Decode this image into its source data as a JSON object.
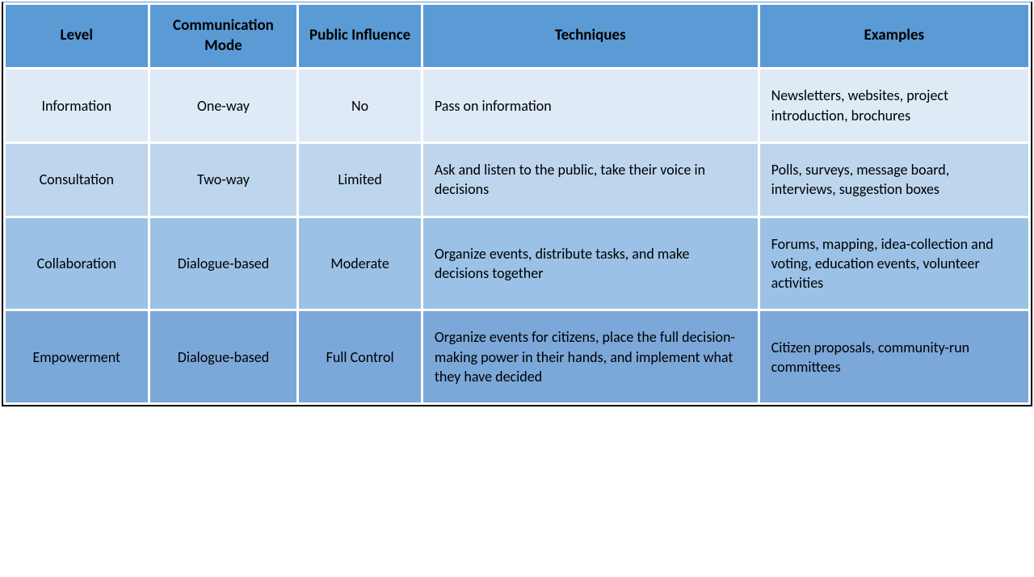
{
  "table": {
    "columns": [
      {
        "label": "Level",
        "class": "col-level"
      },
      {
        "label": "Communication Mode",
        "class": "col-mode"
      },
      {
        "label": "Public Influence",
        "class": "col-influence"
      },
      {
        "label": "Techniques",
        "class": "col-tech"
      },
      {
        "label": "Examples",
        "class": "col-examples"
      }
    ],
    "rows": [
      {
        "row_class": "row-1",
        "cells": [
          {
            "text": "Information",
            "align": "center"
          },
          {
            "text": "One-way",
            "align": "center"
          },
          {
            "text": "No",
            "align": "center"
          },
          {
            "text": "Pass on information",
            "align": "left"
          },
          {
            "text": "Newsletters, websites, project introduction, brochures",
            "align": "left"
          }
        ]
      },
      {
        "row_class": "row-2",
        "cells": [
          {
            "text": "Consultation",
            "align": "center"
          },
          {
            "text": "Two-way",
            "align": "center"
          },
          {
            "text": "Limited",
            "align": "center"
          },
          {
            "text": "Ask and listen to the public, take their voice in decisions",
            "align": "left"
          },
          {
            "text": "Polls, surveys, message board, interviews, suggestion boxes",
            "align": "left"
          }
        ]
      },
      {
        "row_class": "row-3",
        "cells": [
          {
            "text": "Collaboration",
            "align": "center"
          },
          {
            "text": "Dialogue-based",
            "align": "center"
          },
          {
            "text": "Moderate",
            "align": "center"
          },
          {
            "text": "Organize events, distribute tasks, and make decisions together",
            "align": "left"
          },
          {
            "text": "Forums, mapping, idea-collection and voting, education events, volunteer activities",
            "align": "left"
          }
        ]
      },
      {
        "row_class": "row-4",
        "cells": [
          {
            "text": "Empowerment",
            "align": "center"
          },
          {
            "text": "Dialogue-based",
            "align": "center"
          },
          {
            "text": "Full Control",
            "align": "center"
          },
          {
            "text": "Organize events for citizens, place the full decision-making power in their hands, and implement what they have decided",
            "align": "left"
          },
          {
            "text": "Citizen proposals, community-run committees",
            "align": "left"
          }
        ]
      }
    ],
    "styling": {
      "header_bg": "#5b9bd5",
      "row_bgs": [
        "#deeaf6",
        "#bdd6ee",
        "#9bc2e6",
        "#7ba8d9"
      ],
      "border_color": "#000000",
      "spacing_color": "#ffffff",
      "font_family": "Calibri",
      "header_fontsize": 19,
      "cell_fontsize": 18,
      "header_weight": "bold",
      "cell_weight": "normal",
      "text_color": "#000000"
    }
  }
}
